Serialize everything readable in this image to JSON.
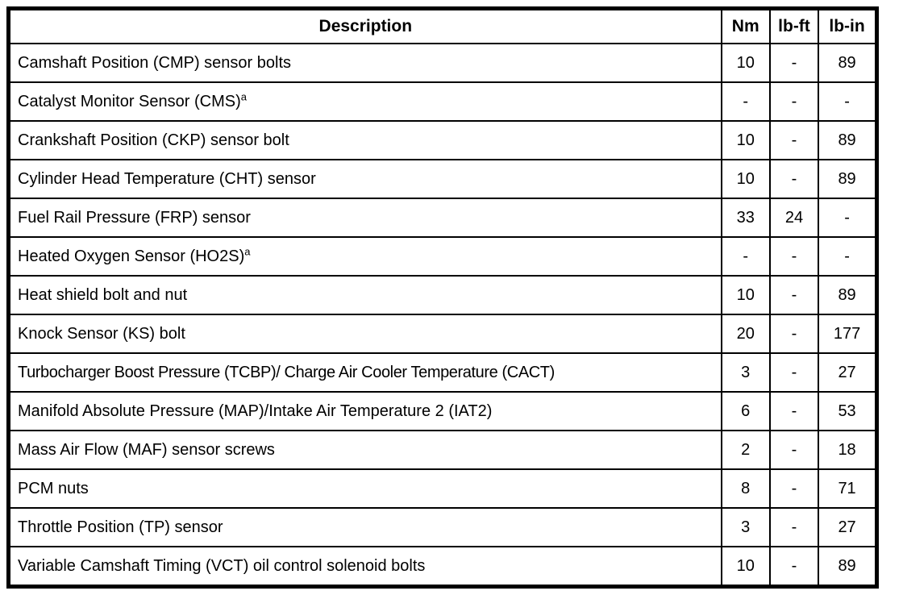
{
  "table": {
    "headers": {
      "description": "Description",
      "nm": "Nm",
      "lbft": "lb-ft",
      "lbin": "lb-in"
    },
    "rows": [
      {
        "description": "Camshaft Position (CMP) sensor bolts",
        "nm": "10",
        "lbft": "-",
        "lbin": "89"
      },
      {
        "description": "Catalyst Monitor Sensor (CMS)",
        "sup": "a",
        "nm": "-",
        "lbft": "-",
        "lbin": "-"
      },
      {
        "description": "Crankshaft Position (CKP) sensor bolt",
        "nm": "10",
        "lbft": "-",
        "lbin": "89"
      },
      {
        "description": "Cylinder Head Temperature (CHT) sensor",
        "nm": "10",
        "lbft": "-",
        "lbin": "89"
      },
      {
        "description": "Fuel Rail Pressure (FRP) sensor",
        "nm": "33",
        "lbft": "24",
        "lbin": "-"
      },
      {
        "description": "Heated Oxygen Sensor (HO2S)",
        "sup": "a",
        "nm": "-",
        "lbft": "-",
        "lbin": "-"
      },
      {
        "description": "Heat shield bolt and nut",
        "nm": "10",
        "lbft": "-",
        "lbin": "89"
      },
      {
        "description": "Knock Sensor (KS) bolt",
        "nm": "20",
        "lbft": "-",
        "lbin": "177"
      },
      {
        "description": "Turbocharger Boost Pressure (TCBP)/ Charge Air Cooler Temperature (CACT)",
        "nm": "3",
        "lbft": "-",
        "lbin": "27"
      },
      {
        "description": "Manifold Absolute Pressure (MAP)/Intake Air Temperature 2 (IAT2)",
        "nm": "6",
        "lbft": "-",
        "lbin": "53"
      },
      {
        "description": "Mass Air Flow (MAF) sensor screws",
        "nm": "2",
        "lbft": "-",
        "lbin": "18"
      },
      {
        "description": "PCM nuts",
        "nm": "8",
        "lbft": "-",
        "lbin": "71"
      },
      {
        "description": "Throttle Position (TP) sensor",
        "nm": "3",
        "lbft": "-",
        "lbin": "27"
      },
      {
        "description": "Variable Camshaft Timing (VCT) oil control solenoid bolts",
        "nm": "10",
        "lbft": "-",
        "lbin": "89"
      }
    ],
    "colors": {
      "border": "#000000",
      "background": "#ffffff",
      "text": "#000000"
    }
  }
}
